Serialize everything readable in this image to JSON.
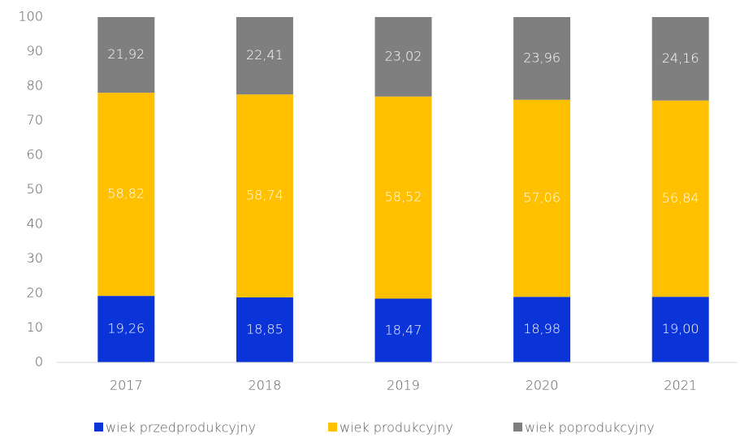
{
  "chart_data": {
    "type": "stacked-bar",
    "categories": [
      "2017",
      "2018",
      "2019",
      "2020",
      "2021"
    ],
    "series": [
      {
        "name": "wiek przedprodukcyjny",
        "color": "#0a33d8",
        "values": [
          19.26,
          18.85,
          18.47,
          18.98,
          19.0
        ],
        "value_labels": [
          "19,26",
          "18,85",
          "18,47",
          "18,98",
          "19,00"
        ]
      },
      {
        "name": "wiek produkcyjny",
        "color": "#ffc000",
        "values": [
          58.82,
          58.74,
          58.52,
          57.06,
          56.84
        ],
        "value_labels": [
          "58,82",
          "58,74",
          "58,52",
          "57,06",
          "56,84"
        ]
      },
      {
        "name": "wiek poprodukcyjny",
        "color": "#7f7f7f",
        "values": [
          21.92,
          22.41,
          23.02,
          23.96,
          24.16
        ],
        "value_labels": [
          "21,92",
          "22,41",
          "23,02",
          "23,96",
          "24,16"
        ]
      }
    ],
    "ylim": [
      0,
      100
    ],
    "yticks": [
      0,
      10,
      20,
      30,
      40,
      50,
      60,
      70,
      80,
      90,
      100
    ],
    "grid": false,
    "legend": "bottom"
  }
}
